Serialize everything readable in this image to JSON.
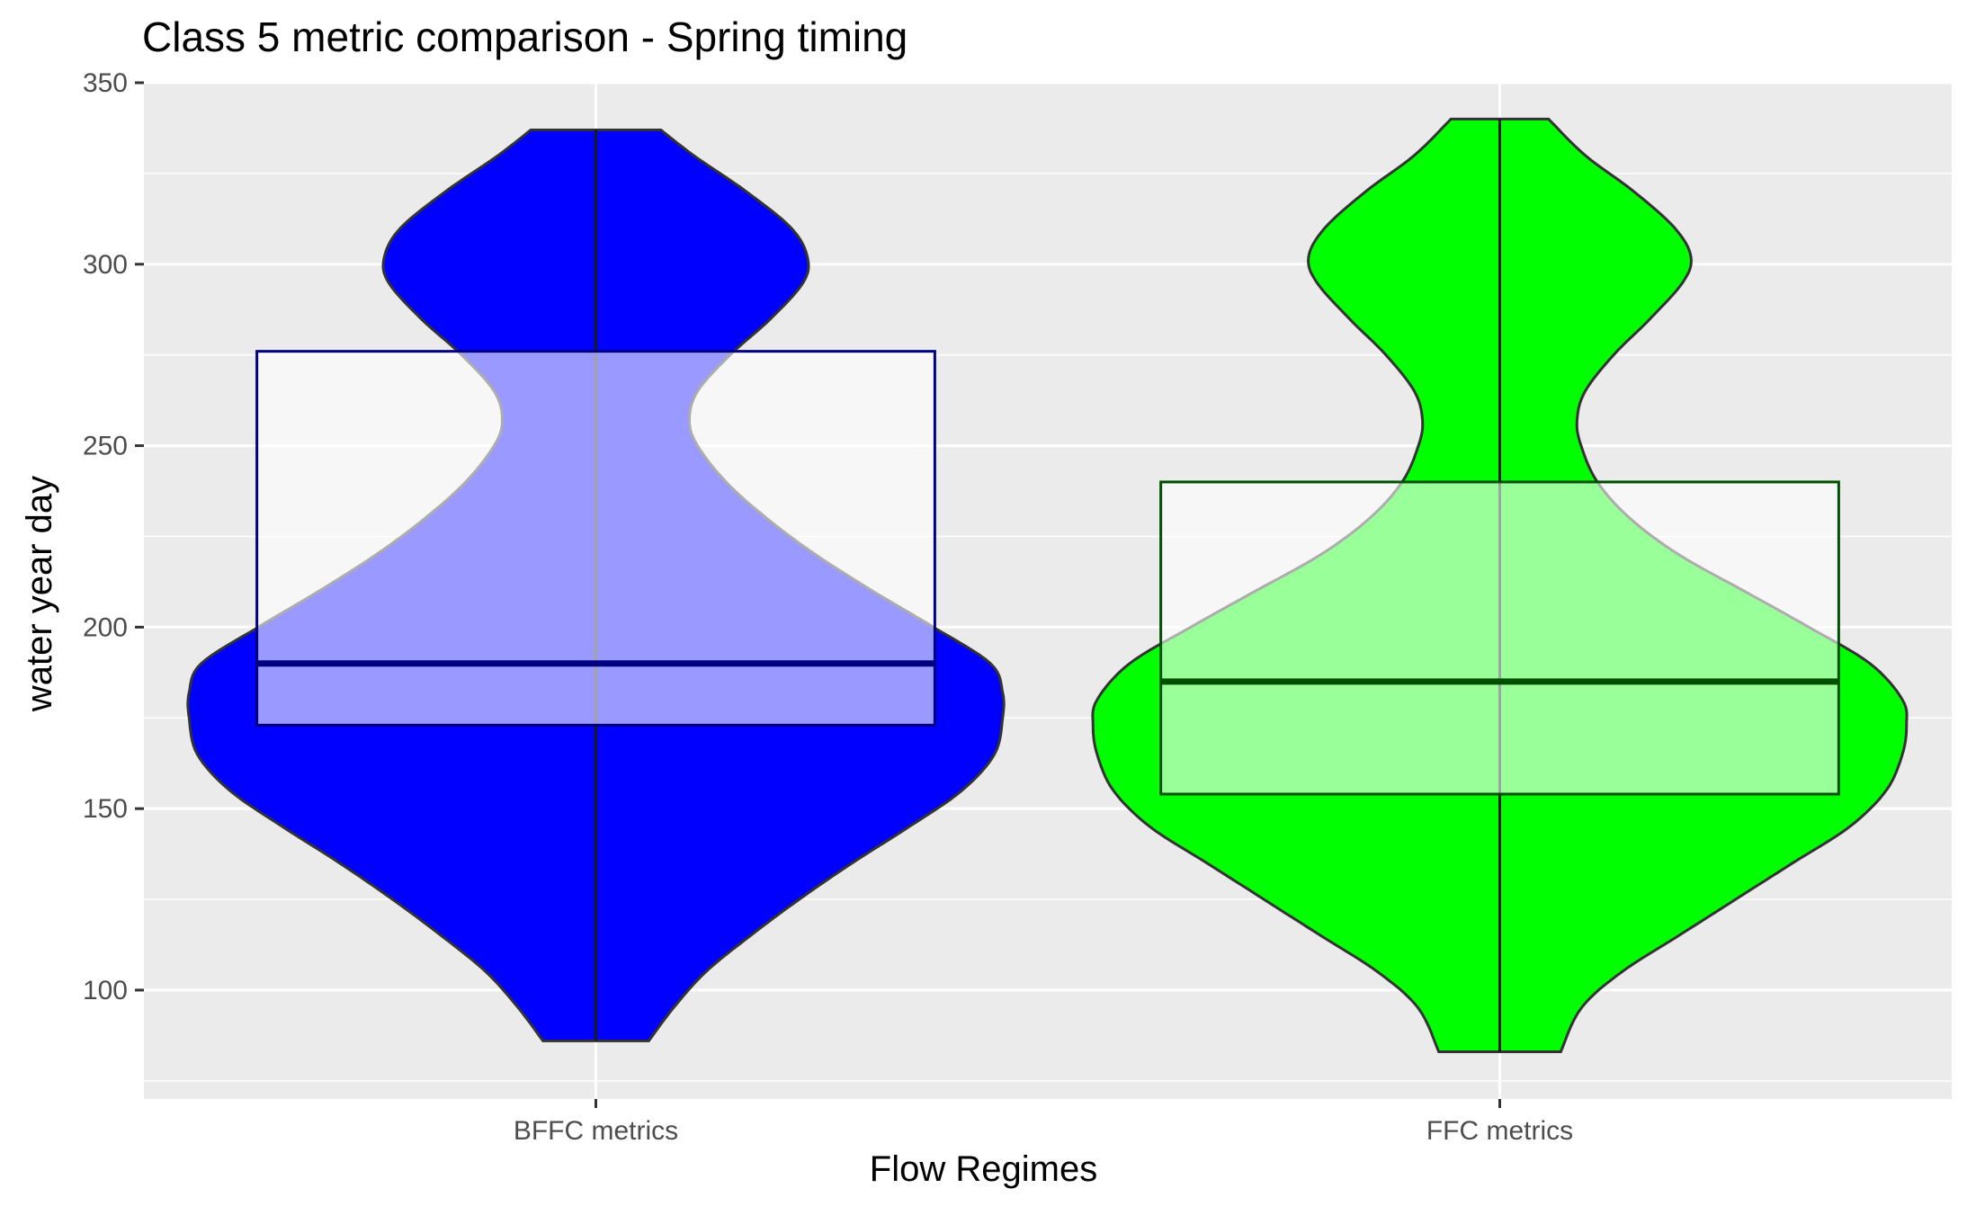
{
  "chart_data": {
    "type": "violin",
    "title": "Class 5 metric comparison - Spring timing",
    "xlabel": "Flow Regimes",
    "ylabel": "water year day",
    "categories": [
      "BFFC metrics",
      "FFC metrics"
    ],
    "ylim": [
      70,
      350
    ],
    "yticks": [
      100,
      150,
      200,
      250,
      300,
      350
    ],
    "grid": true,
    "series": [
      {
        "category": "BFFC metrics",
        "fill": "#0000ff",
        "box_color": "#000080",
        "min": 86,
        "max": 337,
        "q1": 173,
        "median": 190,
        "q3": 276,
        "density_profile": [
          [
            86,
            0.13
          ],
          [
            95,
            0.19
          ],
          [
            105,
            0.27
          ],
          [
            115,
            0.38
          ],
          [
            125,
            0.5
          ],
          [
            135,
            0.63
          ],
          [
            145,
            0.77
          ],
          [
            155,
            0.9
          ],
          [
            165,
            0.98
          ],
          [
            175,
            1.0
          ],
          [
            182,
            1.0
          ],
          [
            190,
            0.97
          ],
          [
            200,
            0.83
          ],
          [
            210,
            0.68
          ],
          [
            220,
            0.54
          ],
          [
            230,
            0.42
          ],
          [
            240,
            0.32
          ],
          [
            250,
            0.25
          ],
          [
            257,
            0.23
          ],
          [
            265,
            0.25
          ],
          [
            275,
            0.33
          ],
          [
            285,
            0.43
          ],
          [
            295,
            0.51
          ],
          [
            302,
            0.52
          ],
          [
            310,
            0.48
          ],
          [
            320,
            0.37
          ],
          [
            330,
            0.24
          ],
          [
            337,
            0.16
          ]
        ]
      },
      {
        "category": "FFC metrics",
        "fill": "#00ff00",
        "box_color": "#005000",
        "min": 83,
        "max": 340,
        "q1": 154,
        "median": 185,
        "q3": 240,
        "density_profile": [
          [
            83,
            0.15
          ],
          [
            95,
            0.2
          ],
          [
            105,
            0.3
          ],
          [
            115,
            0.44
          ],
          [
            125,
            0.58
          ],
          [
            135,
            0.72
          ],
          [
            145,
            0.86
          ],
          [
            155,
            0.95
          ],
          [
            165,
            0.99
          ],
          [
            173,
            1.0
          ],
          [
            180,
            0.99
          ],
          [
            190,
            0.91
          ],
          [
            200,
            0.76
          ],
          [
            210,
            0.6
          ],
          [
            220,
            0.44
          ],
          [
            230,
            0.32
          ],
          [
            240,
            0.24
          ],
          [
            250,
            0.2
          ],
          [
            257,
            0.19
          ],
          [
            265,
            0.21
          ],
          [
            275,
            0.28
          ],
          [
            285,
            0.37
          ],
          [
            295,
            0.45
          ],
          [
            302,
            0.47
          ],
          [
            310,
            0.43
          ],
          [
            320,
            0.33
          ],
          [
            330,
            0.21
          ],
          [
            340,
            0.12
          ]
        ]
      }
    ]
  }
}
